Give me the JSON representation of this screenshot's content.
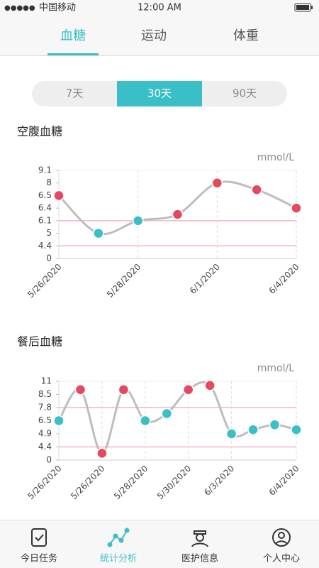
{
  "status_bar": {
    "carrier": "中国移动",
    "time": "12:00 AM"
  },
  "tabs": [
    "血糖",
    "运动",
    "体重"
  ],
  "active_tab": 0,
  "range_options": [
    "7天",
    "30天",
    "90天"
  ],
  "active_range": 1,
  "chart_data": [
    {
      "type": "line",
      "title": "空腹血糖",
      "unit": "mmol/L",
      "categories": [
        "5/26/2020",
        null,
        "5/28/2020",
        null,
        "6/1/2020",
        null,
        "6/4/2020"
      ],
      "values": [
        6.5,
        5.0,
        6.1,
        6.25,
        8.0,
        7.2,
        6.4
      ],
      "ylim": [
        0,
        9.1
      ],
      "yticks": [
        0,
        4.4,
        5,
        6.1,
        6.4,
        6.5,
        8,
        9.1
      ],
      "reference_lines": [
        4.4,
        6.1
      ],
      "line_color": "#bdbdbd",
      "normal_color": "#3bbfc7",
      "alert_color": "#e5485f",
      "reference_color": "#f0a8b0"
    },
    {
      "type": "line",
      "title": "餐后血糖",
      "unit": "mmol/L",
      "categories": [
        "5/26/2020",
        null,
        "5/26/2020",
        null,
        "5/28/2020",
        null,
        "5/30/2020",
        null,
        "6/3/2020",
        null,
        null,
        "6/4/2020"
      ],
      "values": [
        6.5,
        9.4,
        2.3,
        9.4,
        6.5,
        7.2,
        9.4,
        10.2,
        4.9,
        5.4,
        6.0,
        5.4
      ],
      "ylim": [
        0,
        11
      ],
      "yticks": [
        0,
        4.4,
        4.9,
        6.5,
        7.8,
        8.5,
        11
      ],
      "reference_lines": [
        4.4,
        7.8
      ],
      "line_color": "#bdbdbd",
      "normal_color": "#3bbfc7",
      "alert_color": "#e5485f",
      "reference_color": "#f0a8b0"
    }
  ],
  "bottom_nav": [
    "今日任务",
    "统计分析",
    "医护信息",
    "个人中心"
  ],
  "active_nav": 1
}
